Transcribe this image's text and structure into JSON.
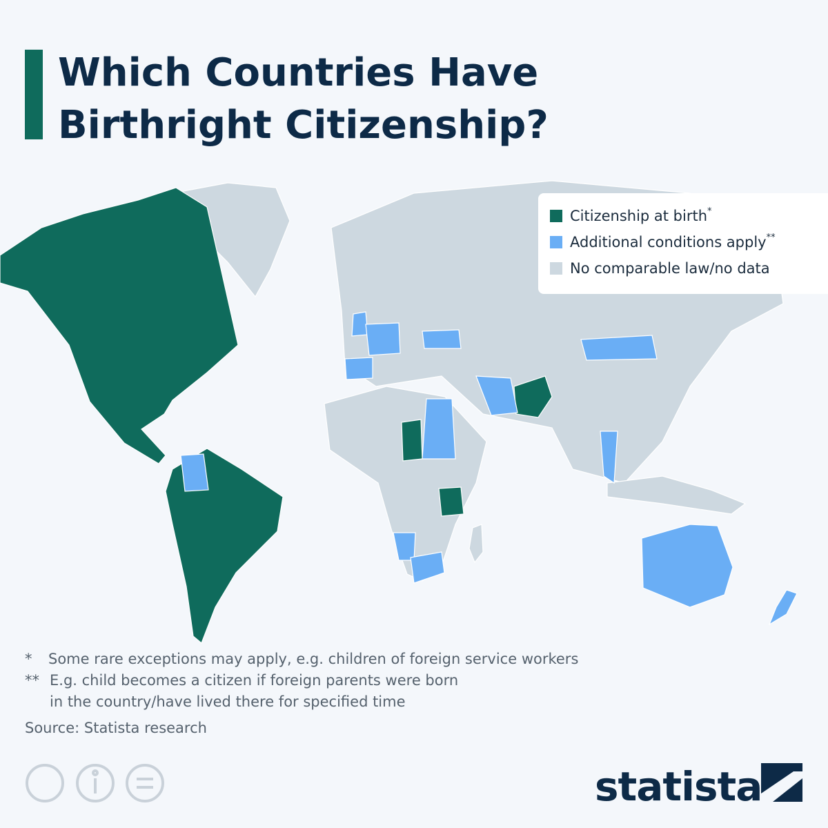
{
  "header": {
    "title_lines": [
      "Which Countries Have",
      "Birthright Citizenship?"
    ]
  },
  "legend": {
    "items": [
      {
        "label": "Citizenship at birth",
        "note": "*",
        "color": "#0f6b5c"
      },
      {
        "label": "Additional conditions apply",
        "note": "**",
        "color": "#6aaef5"
      },
      {
        "label": "No comparable law/no data",
        "color": "#cdd8e0"
      }
    ]
  },
  "footnotes": [
    {
      "marker": "*",
      "lines": [
        "Some rare exceptions may apply, e.g. children of foreign service workers"
      ]
    },
    {
      "marker": "**",
      "lines": [
        "E.g. child becomes a citizen if foreign parents were born",
        "in the country/have lived there for specified time"
      ]
    }
  ],
  "source": "Source: Statista research",
  "logo": "statista"
}
